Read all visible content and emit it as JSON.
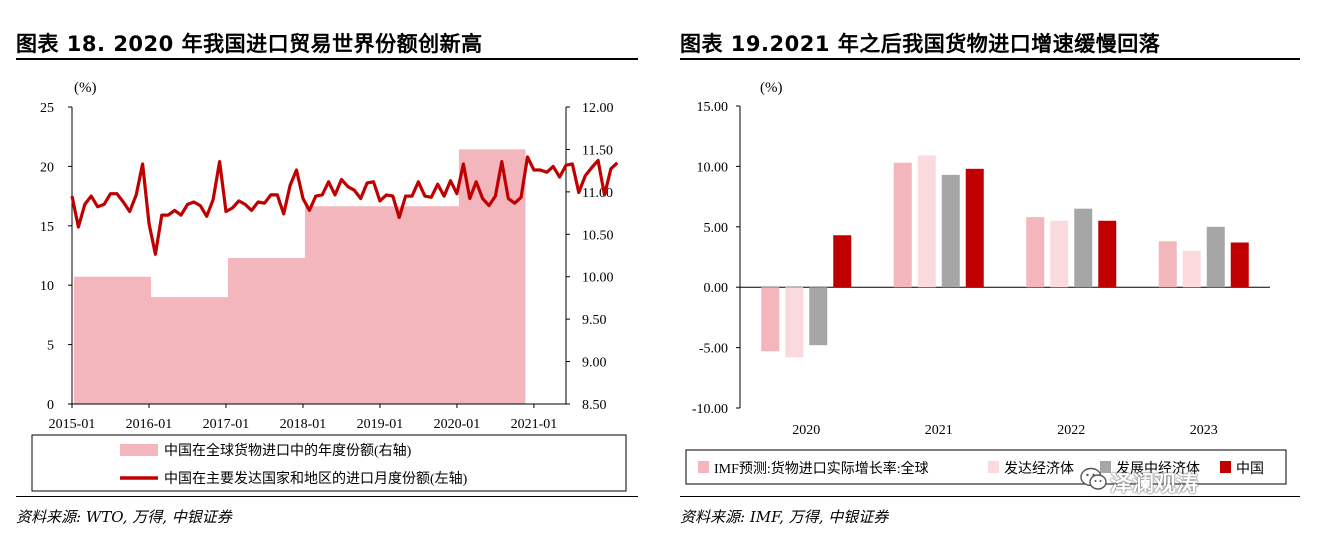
{
  "left": {
    "title": "图表 18. 2020 年我国进口贸易世界份额创新高",
    "source": "资料来源: WTO, 万得, 中银证券",
    "chart_data": {
      "type": "area+line",
      "unit_label": "(%)",
      "x_ticks": [
        "2015-01",
        "2016-01",
        "2017-01",
        "2018-01",
        "2019-01",
        "2020-01",
        "2021-01"
      ],
      "left_axis": {
        "range": [
          0,
          25
        ],
        "ticks": [
          "0",
          "5",
          "10",
          "15",
          "20",
          "25"
        ]
      },
      "right_axis": {
        "range": [
          8.5,
          12.0
        ],
        "ticks": [
          "8.50",
          "9.00",
          "9.50",
          "10.00",
          "10.50",
          "11.00",
          "11.50",
          "12.00"
        ]
      },
      "legend": [
        "中国在全球货物进口中的年度份额(右轴)",
        "中国在主要发达国家和地区的进口月度份额(左轴)"
      ],
      "series": [
        {
          "name": "中国在全球货物进口中的年度份额(右轴)",
          "axis": "right",
          "color": "#f2b6bc",
          "years": [
            2015,
            2016,
            2017,
            2018,
            2019,
            2020
          ],
          "values": [
            10.0,
            9.76,
            10.22,
            10.83,
            10.83,
            11.5
          ]
        },
        {
          "name": "中国在主要发达国家和地区的进口月度份额(左轴)",
          "axis": "left",
          "color": "#c00000",
          "start": "2015-01",
          "values": [
            17.5,
            14.9,
            16.8,
            17.5,
            16.6,
            16.8,
            17.7,
            17.7,
            17.0,
            16.2,
            17.6,
            20.2,
            15.2,
            12.6,
            15.9,
            15.9,
            16.3,
            15.9,
            16.8,
            17.0,
            16.7,
            15.8,
            17.2,
            20.4,
            16.2,
            16.5,
            17.1,
            16.8,
            16.3,
            17.0,
            16.9,
            17.6,
            17.6,
            16.0,
            18.4,
            19.7,
            17.3,
            16.3,
            17.5,
            17.6,
            18.7,
            17.6,
            18.9,
            18.3,
            18.0,
            17.3,
            18.6,
            18.7,
            17.1,
            17.6,
            17.5,
            15.7,
            17.5,
            17.5,
            18.7,
            17.5,
            17.4,
            18.5,
            17.5,
            18.8,
            17.7,
            20.2,
            17.3,
            18.7,
            17.3,
            16.7,
            17.5,
            20.4,
            17.3,
            16.9,
            17.4,
            20.8,
            19.7,
            19.7,
            19.5,
            20.0,
            19.1,
            20.1,
            20.2,
            17.8,
            19.2,
            19.9,
            20.5,
            17.6,
            19.8,
            20.3
          ]
        }
      ]
    }
  },
  "right": {
    "title": "图表 19.2021 年之后我国货物进口增速缓慢回落",
    "source": "资料来源: IMF, 万得, 中银证券",
    "chart_data": {
      "type": "bar",
      "unit_label": "(%)",
      "categories": [
        "2020",
        "2021",
        "2022",
        "2023"
      ],
      "y_axis": {
        "range": [
          -10,
          15
        ],
        "ticks": [
          "15.00",
          "10.00",
          "5.00",
          "0.00",
          "-5.00",
          "-10.00"
        ]
      },
      "legend": [
        "IMF预测:货物进口实际增长率:全球",
        "发达经济体",
        "发展中经济体",
        "中国"
      ],
      "series": [
        {
          "name": "IMF预测:货物进口实际增长率:全球",
          "color": "#f2b6bc",
          "values": [
            -5.3,
            10.3,
            5.8,
            3.8
          ]
        },
        {
          "name": "发达经济体",
          "color": "#fadadd",
          "values": [
            -5.8,
            10.9,
            5.5,
            3.0
          ]
        },
        {
          "name": "发展中经济体",
          "color": "#a6a6a6",
          "values": [
            -4.8,
            9.3,
            6.5,
            5.0
          ]
        },
        {
          "name": "中国",
          "color": "#c00000",
          "values": [
            4.3,
            9.8,
            5.5,
            3.7
          ]
        }
      ]
    }
  },
  "watermark": {
    "text": "泽澜观涛",
    "icon": "wechat-icon"
  }
}
